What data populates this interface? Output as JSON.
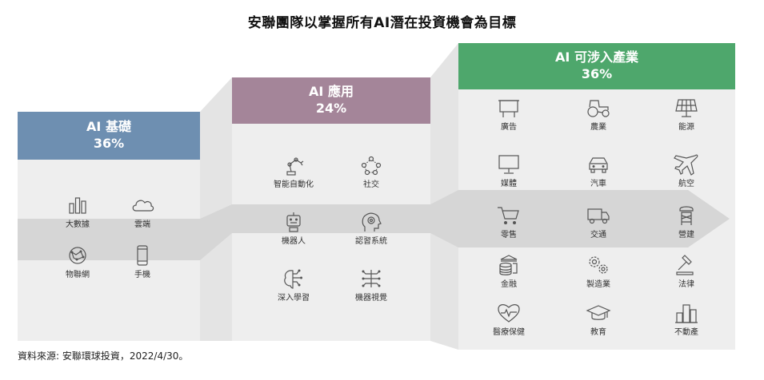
{
  "title": "安聯團隊以掌握所有AI潛在投資機會為目標",
  "source": "資料來源: 安聯環球投資，2022/4/30。",
  "colors": {
    "foundation": "#6e8fb1",
    "application": "#a48599",
    "industry": "#4ea76c",
    "panel": "#eeeeee",
    "arrow": "#d9d9d9"
  },
  "categories": [
    {
      "name": "AI 基礎",
      "percent": "36%",
      "items": [
        {
          "label": "大數據",
          "icon": "bar-chart-icon"
        },
        {
          "label": "雲端",
          "icon": "cloud-icon"
        },
        {
          "label": "物聯網",
          "icon": "globe-network-icon"
        },
        {
          "label": "手機",
          "icon": "smartphone-icon"
        }
      ]
    },
    {
      "name": "AI 應用",
      "percent": "24%",
      "items": [
        {
          "label": "智能自動化",
          "icon": "robot-arm-icon"
        },
        {
          "label": "社交",
          "icon": "social-network-icon"
        },
        {
          "label": "機器人",
          "icon": "robot-icon"
        },
        {
          "label": "認習系統",
          "icon": "brain-gear-icon"
        },
        {
          "label": "深入學習",
          "icon": "brain-circuit-icon"
        },
        {
          "label": "機器視覺",
          "icon": "circuit-icon"
        }
      ]
    },
    {
      "name": "AI 可涉入產業",
      "percent": "36%",
      "items": [
        {
          "label": "廣告",
          "icon": "billboard-icon"
        },
        {
          "label": "農業",
          "icon": "tractor-icon"
        },
        {
          "label": "能源",
          "icon": "solar-panel-icon"
        },
        {
          "label": "媒體",
          "icon": "monitor-icon"
        },
        {
          "label": "汽車",
          "icon": "car-icon"
        },
        {
          "label": "航空",
          "icon": "airplane-icon"
        },
        {
          "label": "零售",
          "icon": "shopping-cart-icon"
        },
        {
          "label": "交通",
          "icon": "truck-icon"
        },
        {
          "label": "營建",
          "icon": "construction-icon"
        },
        {
          "label": "金融",
          "icon": "bank-coins-icon"
        },
        {
          "label": "製造業",
          "icon": "gears-icon"
        },
        {
          "label": "法律",
          "icon": "gavel-icon"
        },
        {
          "label": "醫療保健",
          "icon": "heart-pulse-icon"
        },
        {
          "label": "教育",
          "icon": "graduation-cap-icon"
        },
        {
          "label": "不動產",
          "icon": "buildings-icon"
        }
      ]
    }
  ]
}
